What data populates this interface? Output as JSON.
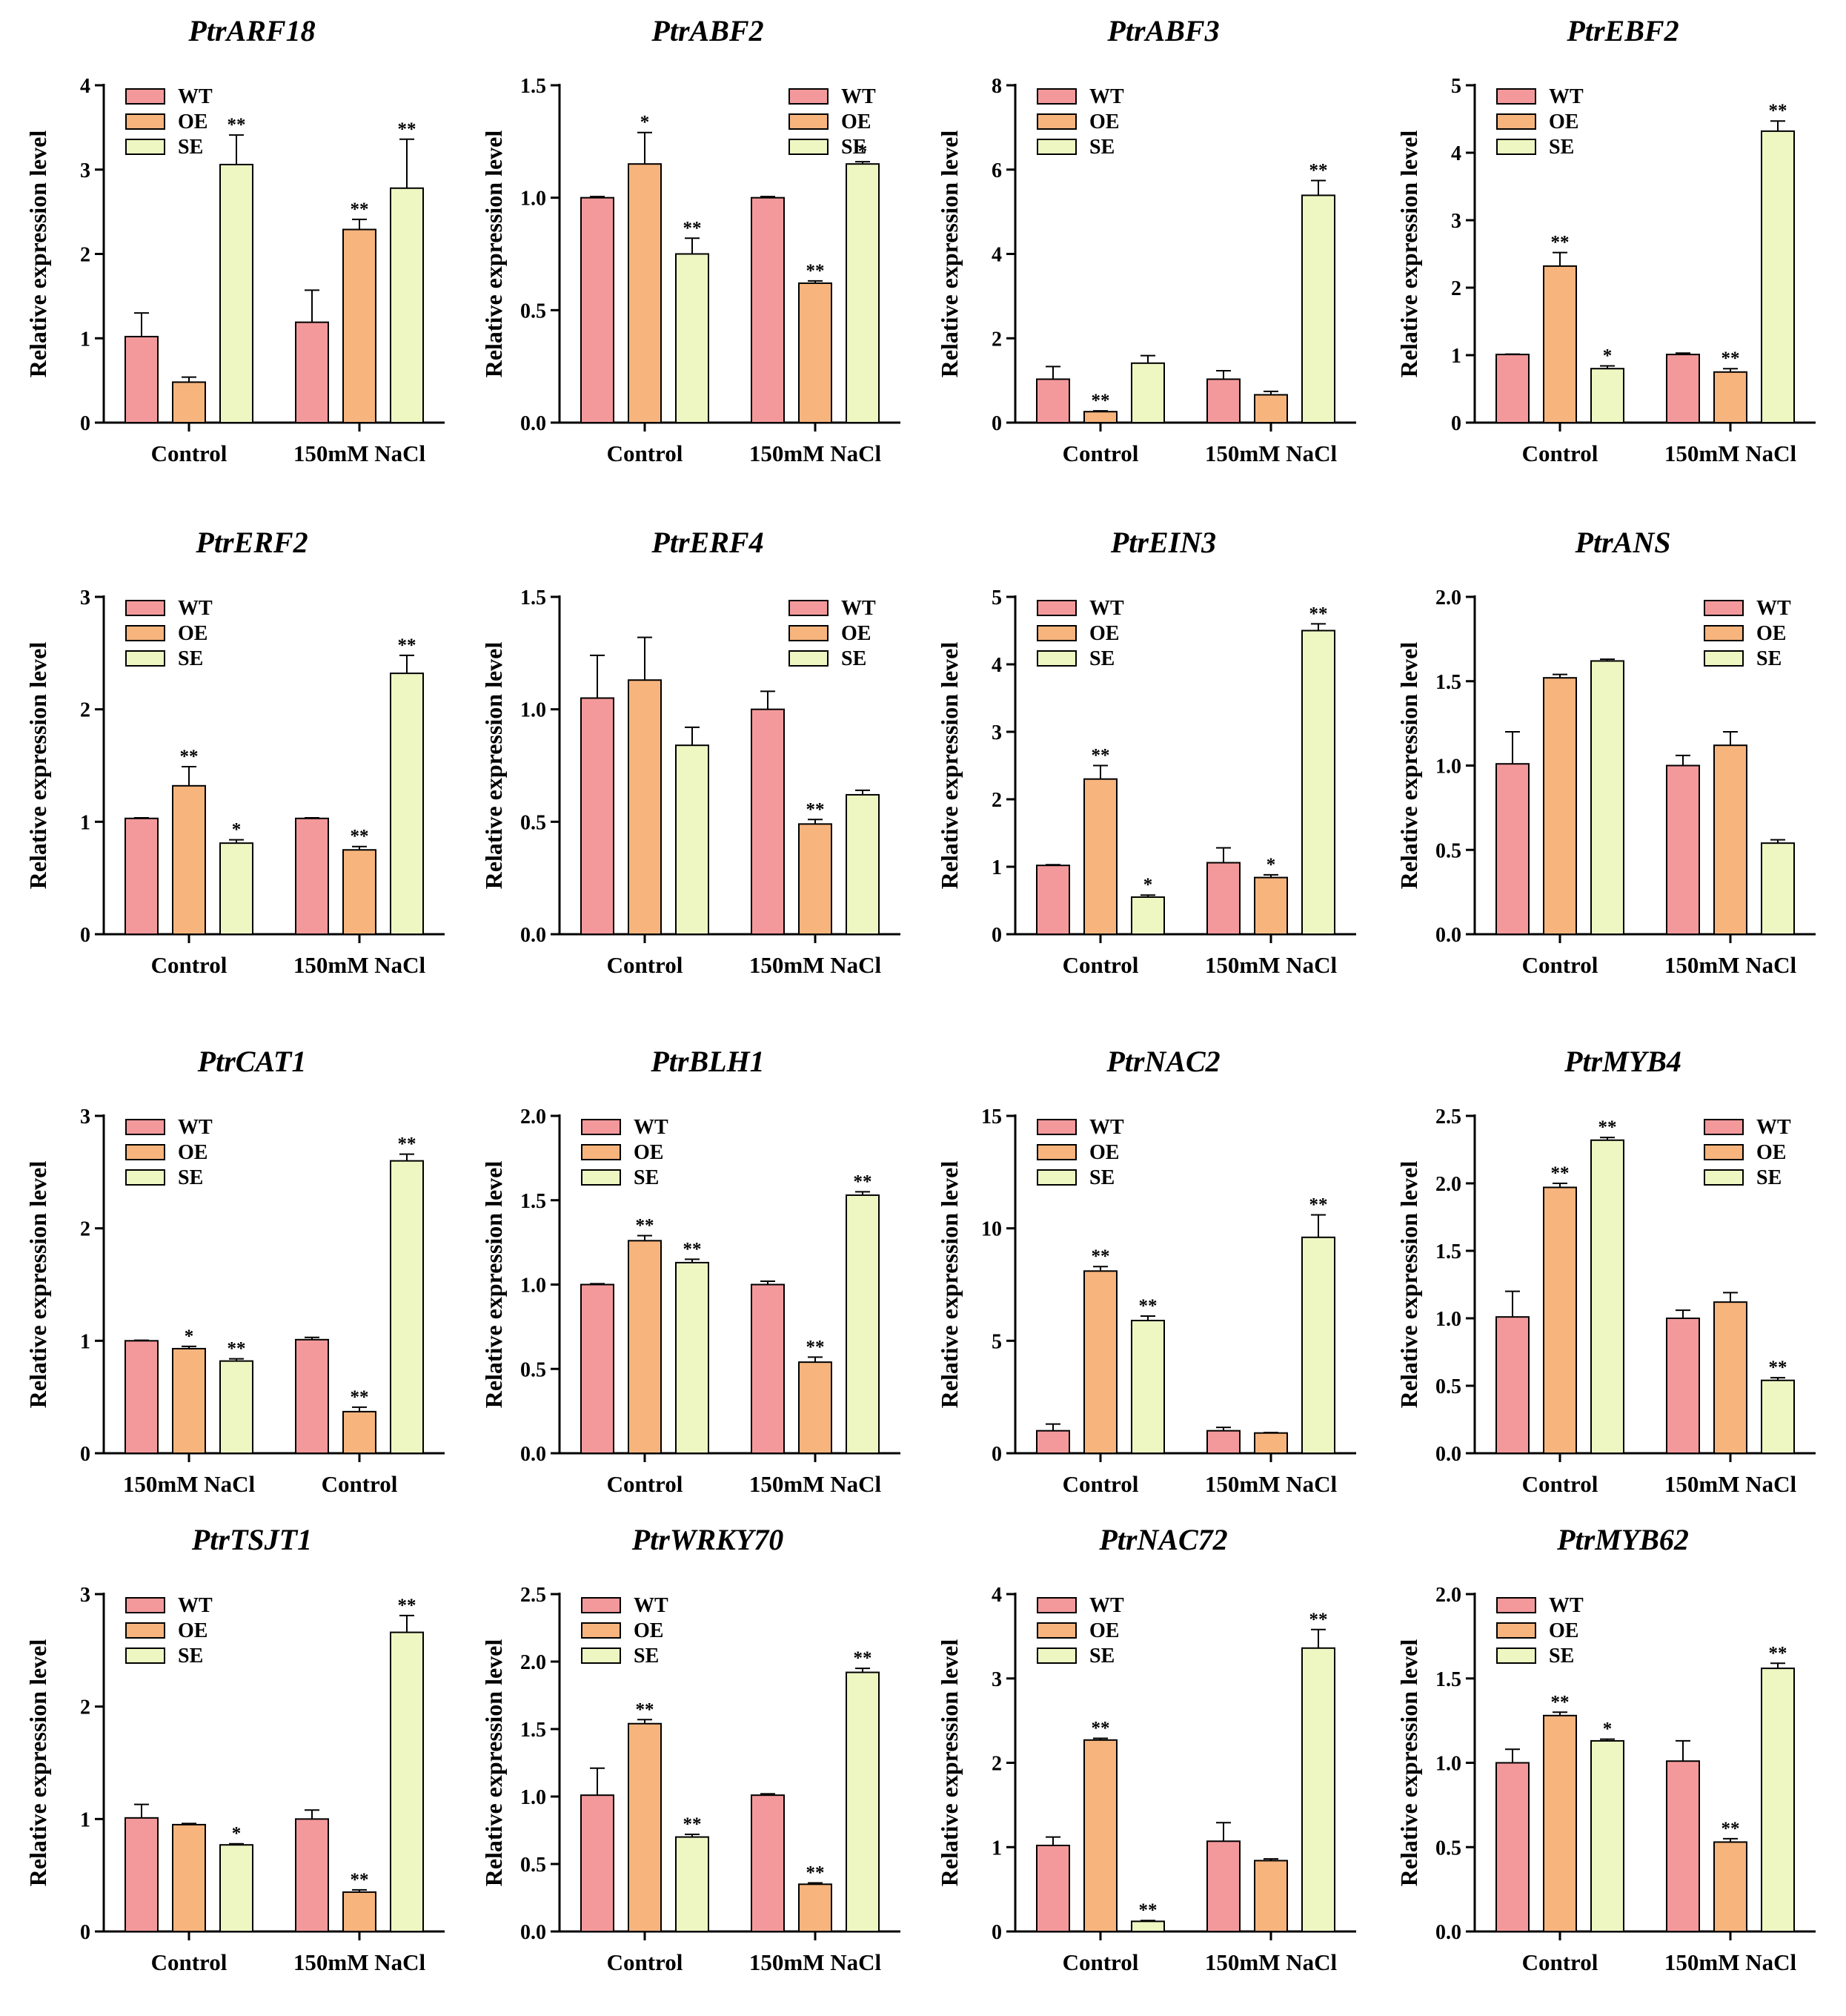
{
  "figure": {
    "legend_labels": [
      "WT",
      "OE",
      "SE"
    ],
    "ylabel": "Relative expression level",
    "colors": {
      "WT": "#f4999b",
      "OE": "#f7b47d",
      "SE": "#eef6c2",
      "stroke": "#000000"
    }
  },
  "chart_data": [
    {
      "type": "bar",
      "title": "PtrARF18",
      "ylabel": "Relative expression level",
      "categories": [
        "Control",
        "150mM NaCl"
      ],
      "legend": "top-left",
      "ylim": [
        0,
        4
      ],
      "yticks": [
        "0",
        "1",
        "2",
        "3",
        "4"
      ],
      "series": [
        {
          "name": "WT",
          "values": [
            1.02,
            1.19
          ],
          "errors": [
            0.28,
            0.38
          ],
          "sig": [
            "",
            ""
          ]
        },
        {
          "name": "OE",
          "values": [
            0.48,
            2.29
          ],
          "errors": [
            0.06,
            0.12
          ],
          "sig": [
            "",
            "**"
          ]
        },
        {
          "name": "SE",
          "values": [
            3.06,
            2.78
          ],
          "errors": [
            0.35,
            0.58
          ],
          "sig": [
            "**",
            "**"
          ]
        }
      ]
    },
    {
      "type": "bar",
      "title": "PtrABF2",
      "ylabel": "Relative expression level",
      "categories": [
        "Control",
        "150mM NaCl"
      ],
      "legend": "top-right",
      "ylim": [
        0,
        1.5
      ],
      "yticks": [
        "0.0",
        "0.5",
        "1.0",
        "1.5"
      ],
      "series": [
        {
          "name": "WT",
          "values": [
            1.0,
            1.0
          ],
          "errors": [
            0.005,
            0.005
          ],
          "sig": [
            "",
            ""
          ]
        },
        {
          "name": "OE",
          "values": [
            1.15,
            0.62
          ],
          "errors": [
            0.14,
            0.01
          ],
          "sig": [
            "*",
            "**"
          ]
        },
        {
          "name": "SE",
          "values": [
            0.75,
            1.15
          ],
          "errors": [
            0.07,
            0.01
          ],
          "sig": [
            "**",
            "*"
          ]
        }
      ]
    },
    {
      "type": "bar",
      "title": "PtrABF3",
      "ylabel": "Relative expression level",
      "categories": [
        "Control",
        "150mM NaCl"
      ],
      "legend": "top-left",
      "ylim": [
        0,
        8
      ],
      "yticks": [
        "0",
        "2",
        "4",
        "6",
        "8"
      ],
      "series": [
        {
          "name": "WT",
          "values": [
            1.03,
            1.03
          ],
          "errors": [
            0.3,
            0.2
          ],
          "sig": [
            "",
            ""
          ]
        },
        {
          "name": "OE",
          "values": [
            0.26,
            0.66
          ],
          "errors": [
            0.02,
            0.08
          ],
          "sig": [
            "**",
            ""
          ]
        },
        {
          "name": "SE",
          "values": [
            1.41,
            5.39
          ],
          "errors": [
            0.18,
            0.35
          ],
          "sig": [
            "",
            "**"
          ]
        }
      ]
    },
    {
      "type": "bar",
      "title": "PtrEBF2",
      "ylabel": "Relative expression level",
      "categories": [
        "Control",
        "150mM NaCl"
      ],
      "legend": "top-left",
      "ylim": [
        0,
        5
      ],
      "yticks": [
        "0",
        "1",
        "2",
        "3",
        "4",
        "5"
      ],
      "series": [
        {
          "name": "WT",
          "values": [
            1.01,
            1.01
          ],
          "errors": [
            0.005,
            0.02
          ],
          "sig": [
            "",
            ""
          ]
        },
        {
          "name": "OE",
          "values": [
            2.32,
            0.75
          ],
          "errors": [
            0.2,
            0.05
          ],
          "sig": [
            "**",
            "**"
          ]
        },
        {
          "name": "SE",
          "values": [
            0.8,
            4.32
          ],
          "errors": [
            0.04,
            0.15
          ],
          "sig": [
            "*",
            "**"
          ]
        }
      ]
    },
    {
      "type": "bar",
      "title": "PtrERF2",
      "ylabel": "Relative expression level",
      "categories": [
        "Control",
        "150mM NaCl"
      ],
      "legend": "top-left",
      "ylim": [
        0,
        3
      ],
      "yticks": [
        "0",
        "1",
        "2",
        "3"
      ],
      "series": [
        {
          "name": "WT",
          "values": [
            1.03,
            1.03
          ],
          "errors": [
            0.005,
            0.005
          ],
          "sig": [
            "",
            ""
          ]
        },
        {
          "name": "OE",
          "values": [
            1.32,
            0.75
          ],
          "errors": [
            0.17,
            0.03
          ],
          "sig": [
            "**",
            "**"
          ]
        },
        {
          "name": "SE",
          "values": [
            0.81,
            2.32
          ],
          "errors": [
            0.03,
            0.16
          ],
          "sig": [
            "*",
            "**"
          ]
        }
      ]
    },
    {
      "type": "bar",
      "title": "PtrERF4",
      "ylabel": "Relative expression level",
      "categories": [
        "Control",
        "150mM NaCl"
      ],
      "legend": "top-right",
      "ylim": [
        0,
        1.5
      ],
      "yticks": [
        "0.0",
        "0.5",
        "1.0",
        "1.5"
      ],
      "series": [
        {
          "name": "WT",
          "values": [
            1.05,
            1.0
          ],
          "errors": [
            0.19,
            0.08
          ],
          "sig": [
            "",
            ""
          ]
        },
        {
          "name": "OE",
          "values": [
            1.13,
            0.49
          ],
          "errors": [
            0.19,
            0.02
          ],
          "sig": [
            "",
            "**"
          ]
        },
        {
          "name": "SE",
          "values": [
            0.84,
            0.62
          ],
          "errors": [
            0.08,
            0.02
          ],
          "sig": [
            "",
            ""
          ]
        }
      ]
    },
    {
      "type": "bar",
      "title": "PtrEIN3",
      "ylabel": "Relative expression level",
      "categories": [
        "Control",
        "150mM NaCl"
      ],
      "legend": "top-left",
      "ylim": [
        0,
        5
      ],
      "yticks": [
        "0",
        "1",
        "2",
        "3",
        "4",
        "5"
      ],
      "series": [
        {
          "name": "WT",
          "values": [
            1.02,
            1.06
          ],
          "errors": [
            0.01,
            0.22
          ],
          "sig": [
            "",
            ""
          ]
        },
        {
          "name": "OE",
          "values": [
            2.3,
            0.84
          ],
          "errors": [
            0.2,
            0.04
          ],
          "sig": [
            "**",
            "*"
          ]
        },
        {
          "name": "SE",
          "values": [
            0.55,
            4.5
          ],
          "errors": [
            0.03,
            0.1
          ],
          "sig": [
            "*",
            "**"
          ]
        }
      ]
    },
    {
      "type": "bar",
      "title": "PtrANS",
      "ylabel": "Relative expression level",
      "categories": [
        "Control",
        "150mM NaCl"
      ],
      "legend": "top-right",
      "ylim": [
        0,
        2
      ],
      "yticks": [
        "0.0",
        "0.5",
        "1.0",
        "1.5",
        "2.0"
      ],
      "series": [
        {
          "name": "WT",
          "values": [
            1.01,
            1.0
          ],
          "errors": [
            0.19,
            0.06
          ],
          "sig": [
            "",
            ""
          ]
        },
        {
          "name": "OE",
          "values": [
            1.52,
            1.12
          ],
          "errors": [
            0.02,
            0.08
          ],
          "sig": [
            "",
            ""
          ]
        },
        {
          "name": "SE",
          "values": [
            1.62,
            0.54
          ],
          "errors": [
            0.01,
            0.02
          ],
          "sig": [
            "",
            ""
          ]
        }
      ]
    },
    {
      "type": "bar",
      "title": "PtrCAT1",
      "ylabel": "Relative expression level",
      "categories": [
        "150mM NaCl",
        "Control"
      ],
      "legend": "top-left",
      "ylim": [
        0,
        3
      ],
      "yticks": [
        "0",
        "1",
        "2",
        "3"
      ],
      "series": [
        {
          "name": "WT",
          "values": [
            1.0,
            1.01
          ],
          "errors": [
            0.005,
            0.02
          ],
          "sig": [
            "",
            ""
          ]
        },
        {
          "name": "OE",
          "values": [
            0.93,
            0.37
          ],
          "errors": [
            0.02,
            0.04
          ],
          "sig": [
            "*",
            "**"
          ]
        },
        {
          "name": "SE",
          "values": [
            0.82,
            2.6
          ],
          "errors": [
            0.02,
            0.06
          ],
          "sig": [
            "**",
            "**"
          ]
        }
      ]
    },
    {
      "type": "bar",
      "title": "PtrBLH1",
      "ylabel": "Relative expression level",
      "categories": [
        "Control",
        "150mM NaCl"
      ],
      "legend": "top-left",
      "ylim": [
        0,
        2
      ],
      "yticks": [
        "0.0",
        "0.5",
        "1.0",
        "1.5",
        "2.0"
      ],
      "series": [
        {
          "name": "WT",
          "values": [
            1.0,
            1.0
          ],
          "errors": [
            0.005,
            0.02
          ],
          "sig": [
            "",
            ""
          ]
        },
        {
          "name": "OE",
          "values": [
            1.26,
            0.54
          ],
          "errors": [
            0.03,
            0.03
          ],
          "sig": [
            "**",
            "**"
          ]
        },
        {
          "name": "SE",
          "values": [
            1.13,
            1.53
          ],
          "errors": [
            0.02,
            0.02
          ],
          "sig": [
            "**",
            "**"
          ]
        }
      ]
    },
    {
      "type": "bar",
      "title": "PtrNAC2",
      "ylabel": "Relative expression level",
      "categories": [
        "Control",
        "150mM NaCl"
      ],
      "legend": "top-left",
      "ylim": [
        0,
        15
      ],
      "yticks": [
        "0",
        "5",
        "10",
        "15"
      ],
      "series": [
        {
          "name": "WT",
          "values": [
            1.0,
            1.0
          ],
          "errors": [
            0.3,
            0.15
          ],
          "sig": [
            "",
            ""
          ]
        },
        {
          "name": "OE",
          "values": [
            8.1,
            0.9
          ],
          "errors": [
            0.2,
            0.02
          ],
          "sig": [
            "**",
            ""
          ]
        },
        {
          "name": "SE",
          "values": [
            5.9,
            9.6
          ],
          "errors": [
            0.2,
            1.0
          ],
          "sig": [
            "**",
            "**"
          ]
        }
      ]
    },
    {
      "type": "bar",
      "title": "PtrMYB4",
      "ylabel": "Relative expression level",
      "categories": [
        "Control",
        "150mM NaCl"
      ],
      "legend": "top-right",
      "ylim": [
        0,
        2.5
      ],
      "yticks": [
        "0.0",
        "0.5",
        "1.0",
        "1.5",
        "2.0",
        "2.5"
      ],
      "series": [
        {
          "name": "WT",
          "values": [
            1.01,
            1.0
          ],
          "errors": [
            0.19,
            0.06
          ],
          "sig": [
            "",
            ""
          ]
        },
        {
          "name": "OE",
          "values": [
            1.97,
            1.12
          ],
          "errors": [
            0.03,
            0.07
          ],
          "sig": [
            "**",
            ""
          ]
        },
        {
          "name": "SE",
          "values": [
            2.32,
            0.54
          ],
          "errors": [
            0.02,
            0.02
          ],
          "sig": [
            "**",
            "**"
          ]
        }
      ]
    },
    {
      "type": "bar",
      "title": "PtrTSJT1",
      "ylabel": "Relative expression level",
      "categories": [
        "Control",
        "150mM NaCl"
      ],
      "legend": "top-left",
      "ylim": [
        0,
        3
      ],
      "yticks": [
        "0",
        "1",
        "2",
        "3"
      ],
      "series": [
        {
          "name": "WT",
          "values": [
            1.01,
            1.0
          ],
          "errors": [
            0.12,
            0.08
          ],
          "sig": [
            "",
            ""
          ]
        },
        {
          "name": "OE",
          "values": [
            0.95,
            0.35
          ],
          "errors": [
            0.01,
            0.02
          ],
          "sig": [
            "",
            "**"
          ]
        },
        {
          "name": "SE",
          "values": [
            0.77,
            2.66
          ],
          "errors": [
            0.01,
            0.15
          ],
          "sig": [
            "*",
            "**"
          ]
        }
      ]
    },
    {
      "type": "bar",
      "title": "PtrWRKY70",
      "ylabel": "Relative expression level",
      "categories": [
        "Control",
        "150mM NaCl"
      ],
      "legend": "top-left",
      "ylim": [
        0,
        2.5
      ],
      "yticks": [
        "0.0",
        "0.5",
        "1.0",
        "1.5",
        "2.0",
        "2.5"
      ],
      "series": [
        {
          "name": "WT",
          "values": [
            1.01,
            1.01
          ],
          "errors": [
            0.2,
            0.01
          ],
          "sig": [
            "",
            ""
          ]
        },
        {
          "name": "OE",
          "values": [
            1.54,
            0.35
          ],
          "errors": [
            0.03,
            0.01
          ],
          "sig": [
            "**",
            "**"
          ]
        },
        {
          "name": "SE",
          "values": [
            0.7,
            1.92
          ],
          "errors": [
            0.02,
            0.03
          ],
          "sig": [
            "**",
            "**"
          ]
        }
      ]
    },
    {
      "type": "bar",
      "title": "PtrNAC72",
      "ylabel": "Relative expression level",
      "categories": [
        "Control",
        "150mM NaCl"
      ],
      "legend": "top-left",
      "ylim": [
        0,
        4
      ],
      "yticks": [
        "0",
        "1",
        "2",
        "3",
        "4"
      ],
      "series": [
        {
          "name": "WT",
          "values": [
            1.02,
            1.07
          ],
          "errors": [
            0.1,
            0.22
          ],
          "sig": [
            "",
            ""
          ]
        },
        {
          "name": "OE",
          "values": [
            2.27,
            0.84
          ],
          "errors": [
            0.02,
            0.02
          ],
          "sig": [
            "**",
            ""
          ]
        },
        {
          "name": "SE",
          "values": [
            0.12,
            3.36
          ],
          "errors": [
            0.01,
            0.22
          ],
          "sig": [
            "**",
            "**"
          ]
        }
      ]
    },
    {
      "type": "bar",
      "title": "PtrMYB62",
      "ylabel": "Relative expression level",
      "categories": [
        "Control",
        "150mM NaCl"
      ],
      "legend": "top-left",
      "ylim": [
        0,
        2
      ],
      "yticks": [
        "0.0",
        "0.5",
        "1.0",
        "1.5",
        "2.0"
      ],
      "series": [
        {
          "name": "WT",
          "values": [
            1.0,
            1.01
          ],
          "errors": [
            0.08,
            0.12
          ],
          "sig": [
            "",
            ""
          ]
        },
        {
          "name": "OE",
          "values": [
            1.28,
            0.53
          ],
          "errors": [
            0.02,
            0.02
          ],
          "sig": [
            "**",
            "**"
          ]
        },
        {
          "name": "SE",
          "values": [
            1.13,
            1.56
          ],
          "errors": [
            0.01,
            0.03
          ],
          "sig": [
            "*",
            "**"
          ]
        }
      ]
    }
  ]
}
